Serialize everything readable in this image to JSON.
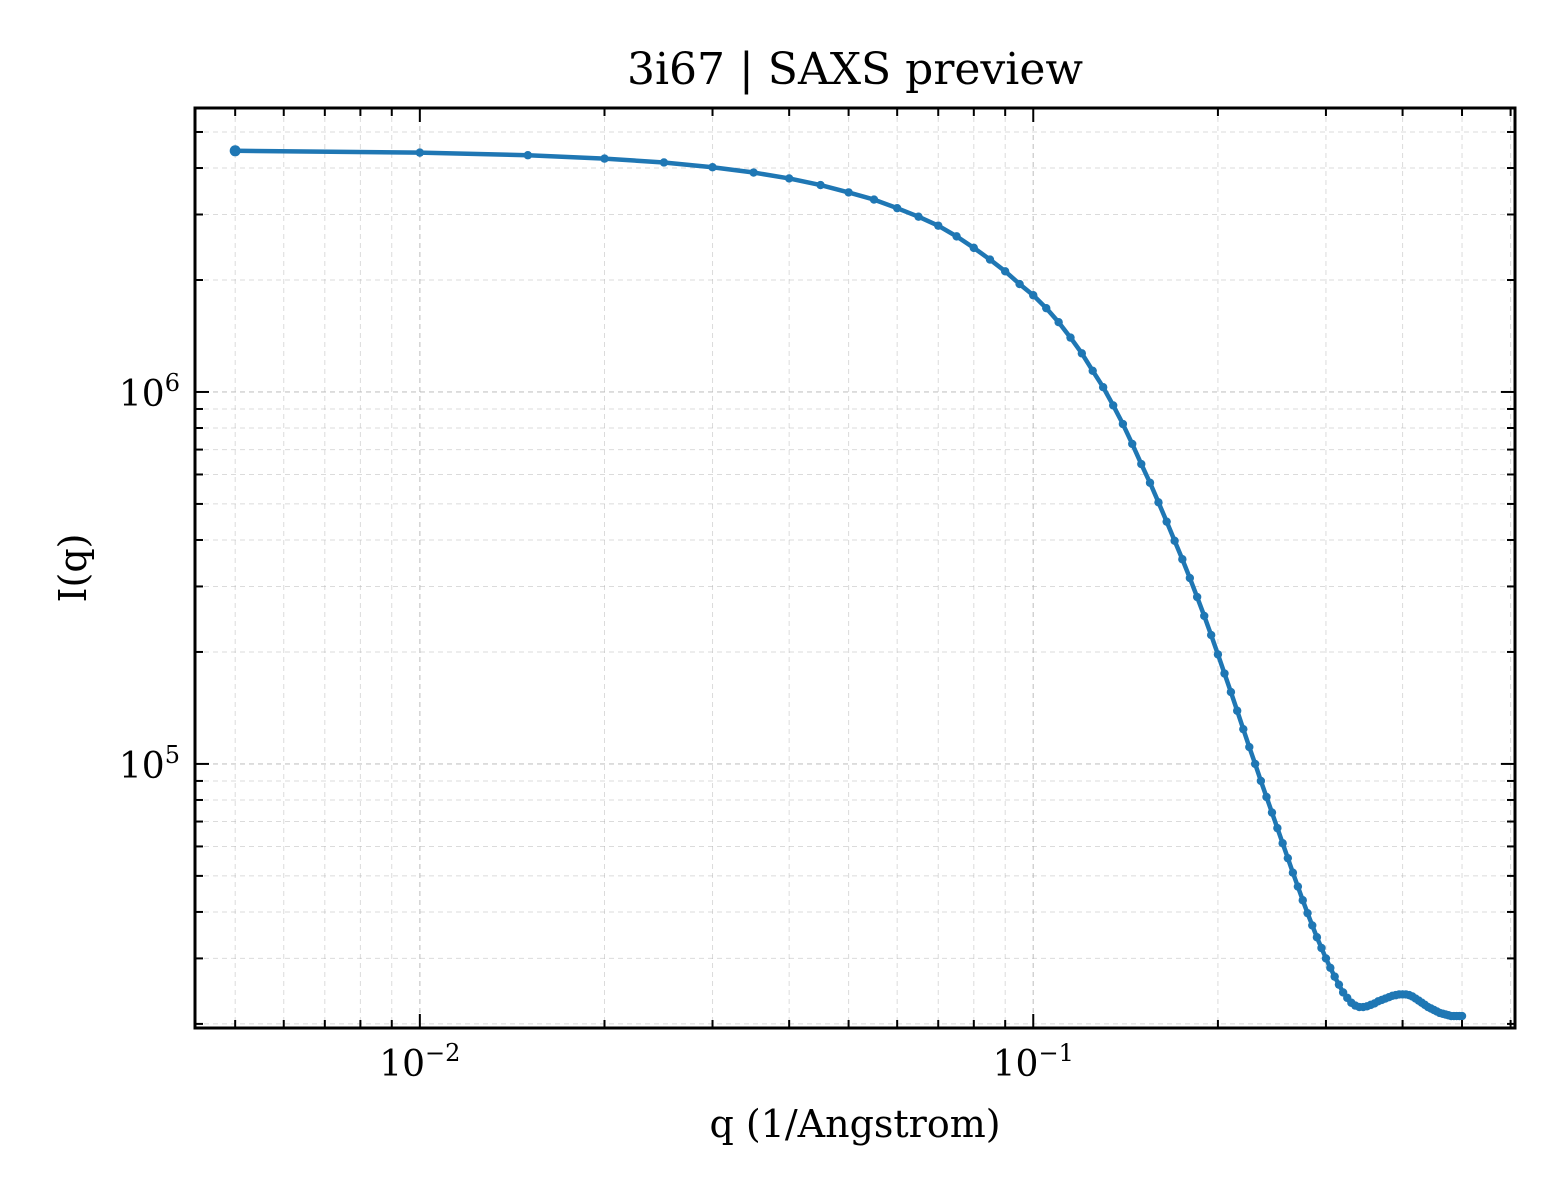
{
  "chart_data": {
    "type": "line",
    "title": "3i67 | SAXS preview",
    "xlabel": "q (1/Angstrom)",
    "ylabel": "I(q)",
    "xscale": "log",
    "yscale": "log",
    "xlim": [
      0.0043,
      0.61
    ],
    "ylim": [
      19500,
      5800000
    ],
    "grid": true,
    "line_color": "#1f77b4",
    "x_ticks": [
      {
        "value": 0.01,
        "base": "10",
        "exp": "−2"
      },
      {
        "value": 0.1,
        "base": "10",
        "exp": "−1"
      }
    ],
    "y_ticks": [
      {
        "value": 100000,
        "base": "10",
        "exp": "5"
      },
      {
        "value": 1000000,
        "base": "10",
        "exp": "6"
      }
    ],
    "series": [
      {
        "x": [
          0.005,
          0.01,
          0.015,
          0.02,
          0.025,
          0.03,
          0.035,
          0.04,
          0.045,
          0.05,
          0.055,
          0.06,
          0.065,
          0.07,
          0.075,
          0.08,
          0.085,
          0.09,
          0.095,
          0.1,
          0.105,
          0.11,
          0.115,
          0.12,
          0.125,
          0.13,
          0.135,
          0.14,
          0.145,
          0.15,
          0.155,
          0.16,
          0.165,
          0.17,
          0.175,
          0.18,
          0.185,
          0.19,
          0.195,
          0.2,
          0.205,
          0.21,
          0.215,
          0.22,
          0.225,
          0.23,
          0.235,
          0.24,
          0.245,
          0.25,
          0.255,
          0.26,
          0.265,
          0.27,
          0.275,
          0.28,
          0.285,
          0.29,
          0.295,
          0.3,
          0.305,
          0.31,
          0.315,
          0.32,
          0.325,
          0.33,
          0.335,
          0.34,
          0.345,
          0.35,
          0.355,
          0.36,
          0.365,
          0.37,
          0.375,
          0.38,
          0.385,
          0.39,
          0.395,
          0.4,
          0.405,
          0.41,
          0.415,
          0.42,
          0.425,
          0.43,
          0.435,
          0.44,
          0.445,
          0.45,
          0.455,
          0.46,
          0.465,
          0.47,
          0.475,
          0.48,
          0.485,
          0.49,
          0.495,
          0.5
        ],
        "y": [
          4450000,
          4400000,
          4330000,
          4240000,
          4140000,
          4020000,
          3890000,
          3750000,
          3600000,
          3440000,
          3290000,
          3120000,
          2960000,
          2800000,
          2620000,
          2440000,
          2270000,
          2110000,
          1950000,
          1820000,
          1680000,
          1540000,
          1400000,
          1270000,
          1140000,
          1030000,
          920000,
          820000,
          725000,
          640000,
          570000,
          505000,
          448000,
          398000,
          355000,
          316000,
          281000,
          250000,
          222000,
          197000,
          175000,
          156000,
          139000,
          124000,
          111000,
          100000,
          90000,
          81500,
          74000,
          67200,
          61200,
          55800,
          51000,
          46800,
          43000,
          39700,
          36800,
          34200,
          32000,
          30000,
          28300,
          26800,
          25500,
          24300,
          23500,
          22800,
          22400,
          22200,
          22200,
          22300,
          22500,
          22700,
          23000,
          23200,
          23400,
          23600,
          23800,
          23900,
          24000,
          24000,
          24000,
          23900,
          23700,
          23400,
          23100,
          22800,
          22500,
          22200,
          22000,
          21800,
          21600,
          21400,
          21300,
          21200,
          21100,
          21000,
          21000,
          21000,
          21000,
          21000
        ]
      }
    ]
  }
}
